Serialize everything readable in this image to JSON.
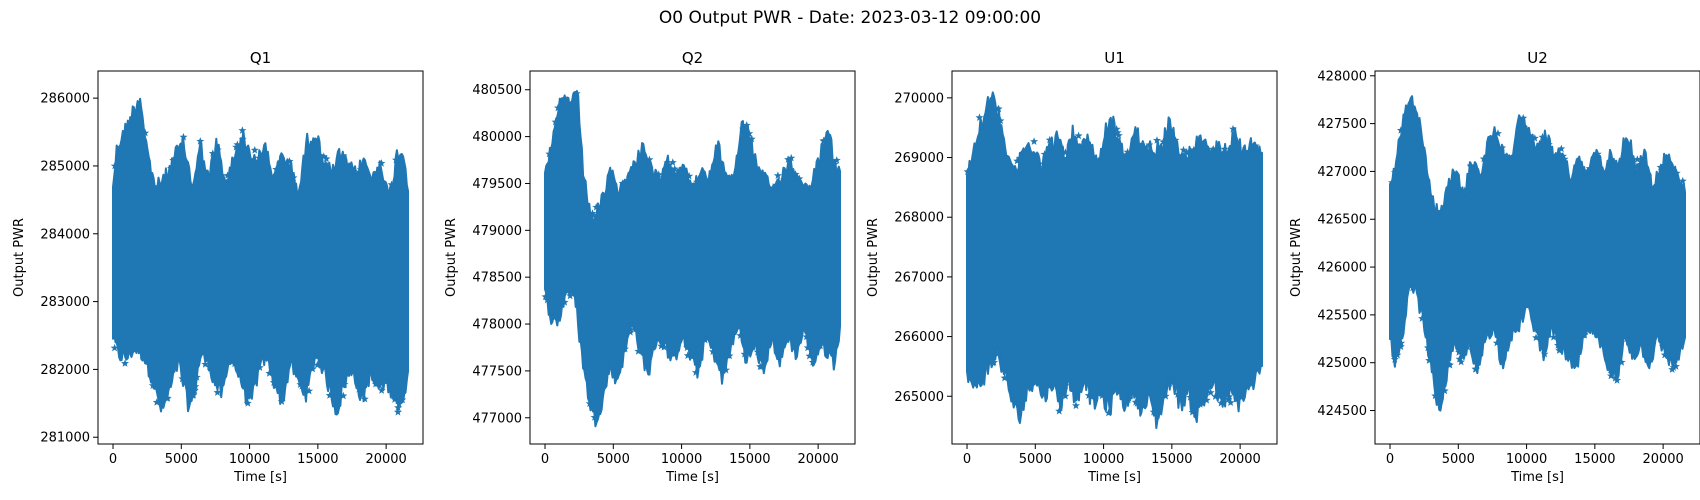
{
  "figure": {
    "title": "O0 Output PWR - Date: 2023-03-12 09:00:00"
  },
  "style": {
    "series_color": "#1f77b4",
    "marker": "star",
    "axis_color": "#000000"
  },
  "chart_data": [
    {
      "type": "scatter",
      "title": "Q1",
      "xlabel": "Time [s]",
      "ylabel": "Output PWR",
      "xlim": [
        -1100,
        22700
      ],
      "ylim": [
        280900,
        286400
      ],
      "xticks": [
        0,
        5000,
        10000,
        15000,
        20000
      ],
      "yticks": [
        281000,
        282000,
        283000,
        284000,
        285000,
        286000
      ],
      "x_range": [
        0,
        21600
      ],
      "band_center": 283400,
      "upper_envelope": [
        [
          0,
          284800
        ],
        [
          300,
          285400
        ],
        [
          800,
          285600
        ],
        [
          1200,
          285800
        ],
        [
          1600,
          286000
        ],
        [
          2000,
          286150
        ],
        [
          2400,
          285500
        ],
        [
          2800,
          285000
        ],
        [
          3200,
          284800
        ],
        [
          3600,
          284900
        ],
        [
          4000,
          285000
        ],
        [
          4600,
          285300
        ],
        [
          5200,
          285450
        ],
        [
          5800,
          284800
        ],
        [
          6400,
          285400
        ],
        [
          7000,
          284900
        ],
        [
          7600,
          285500
        ],
        [
          8200,
          284800
        ],
        [
          8800,
          285200
        ],
        [
          9400,
          285600
        ],
        [
          10000,
          285300
        ],
        [
          10600,
          285200
        ],
        [
          11200,
          285400
        ],
        [
          11800,
          284900
        ],
        [
          12400,
          285300
        ],
        [
          13000,
          285100
        ],
        [
          13600,
          284700
        ],
        [
          14200,
          285500
        ],
        [
          14800,
          285600
        ],
        [
          15400,
          285200
        ],
        [
          16000,
          285000
        ],
        [
          16600,
          285300
        ],
        [
          17200,
          285100
        ],
        [
          17800,
          285000
        ],
        [
          18400,
          285200
        ],
        [
          19000,
          284900
        ],
        [
          19600,
          285200
        ],
        [
          20200,
          284600
        ],
        [
          20800,
          285300
        ],
        [
          21200,
          285400
        ],
        [
          21600,
          284800
        ]
      ],
      "lower_envelope": [
        [
          0,
          282400
        ],
        [
          400,
          282100
        ],
        [
          1000,
          282050
        ],
        [
          1600,
          282200
        ],
        [
          2200,
          282100
        ],
        [
          2800,
          281800
        ],
        [
          3200,
          281500
        ],
        [
          3600,
          281250
        ],
        [
          4200,
          281600
        ],
        [
          4800,
          282000
        ],
        [
          5200,
          281600
        ],
        [
          5600,
          281300
        ],
        [
          6000,
          281600
        ],
        [
          6400,
          282100
        ],
        [
          7000,
          282000
        ],
        [
          7400,
          281700
        ],
        [
          8000,
          281500
        ],
        [
          8600,
          282100
        ],
        [
          9400,
          281700
        ],
        [
          10000,
          281300
        ],
        [
          10600,
          281800
        ],
        [
          11200,
          282100
        ],
        [
          11800,
          281700
        ],
        [
          12400,
          281400
        ],
        [
          13000,
          282000
        ],
        [
          13600,
          281700
        ],
        [
          14200,
          281500
        ],
        [
          14800,
          282100
        ],
        [
          15400,
          281900
        ],
        [
          16000,
          281500
        ],
        [
          16400,
          281250
        ],
        [
          17000,
          281700
        ],
        [
          17600,
          281900
        ],
        [
          18200,
          281400
        ],
        [
          18800,
          281800
        ],
        [
          19400,
          281600
        ],
        [
          20000,
          281700
        ],
        [
          20600,
          281500
        ],
        [
          21000,
          281300
        ],
        [
          21600,
          281800
        ]
      ]
    },
    {
      "type": "scatter",
      "title": "Q2",
      "xlabel": "Time [s]",
      "ylabel": "Output PWR",
      "xlim": [
        -1100,
        22700
      ],
      "ylim": [
        476720,
        480700
      ],
      "xticks": [
        0,
        5000,
        10000,
        15000,
        20000
      ],
      "yticks": [
        477000,
        477500,
        478000,
        478500,
        479000,
        479500,
        480000,
        480500
      ],
      "x_range": [
        0,
        21600
      ],
      "band_center": 478800,
      "upper_envelope": [
        [
          0,
          479700
        ],
        [
          400,
          479900
        ],
        [
          800,
          480200
        ],
        [
          1200,
          480500
        ],
        [
          1800,
          480450
        ],
        [
          2400,
          480500
        ],
        [
          2800,
          479700
        ],
        [
          3200,
          479300
        ],
        [
          3600,
          479200
        ],
        [
          4200,
          479400
        ],
        [
          4800,
          479700
        ],
        [
          5400,
          479500
        ],
        [
          6000,
          479600
        ],
        [
          6600,
          479800
        ],
        [
          7200,
          480000
        ],
        [
          7800,
          479700
        ],
        [
          8400,
          479600
        ],
        [
          9000,
          479800
        ],
        [
          9600,
          479700
        ],
        [
          10200,
          479800
        ],
        [
          10800,
          479500
        ],
        [
          11400,
          479700
        ],
        [
          12000,
          479600
        ],
        [
          12600,
          480000
        ],
        [
          13200,
          479700
        ],
        [
          13800,
          479600
        ],
        [
          14400,
          480200
        ],
        [
          15000,
          480100
        ],
        [
          15600,
          479700
        ],
        [
          16200,
          479600
        ],
        [
          16800,
          479500
        ],
        [
          17400,
          479700
        ],
        [
          18000,
          479800
        ],
        [
          18600,
          479600
        ],
        [
          19200,
          479500
        ],
        [
          19800,
          479700
        ],
        [
          20400,
          480000
        ],
        [
          20800,
          480100
        ],
        [
          21200,
          479800
        ],
        [
          21600,
          479700
        ]
      ],
      "lower_envelope": [
        [
          0,
          478300
        ],
        [
          400,
          478000
        ],
        [
          1000,
          477950
        ],
        [
          1600,
          478300
        ],
        [
          2200,
          478200
        ],
        [
          2600,
          477700
        ],
        [
          3000,
          477300
        ],
        [
          3400,
          477000
        ],
        [
          3700,
          476900
        ],
        [
          4200,
          477100
        ],
        [
          4800,
          477500
        ],
        [
          5200,
          477300
        ],
        [
          5800,
          477600
        ],
        [
          6400,
          478000
        ],
        [
          7000,
          477600
        ],
        [
          7600,
          477400
        ],
        [
          8200,
          477800
        ],
        [
          8800,
          477700
        ],
        [
          9400,
          477500
        ],
        [
          10000,
          477800
        ],
        [
          10600,
          477600
        ],
        [
          11200,
          477400
        ],
        [
          11800,
          477800
        ],
        [
          12400,
          477600
        ],
        [
          13000,
          477300
        ],
        [
          13600,
          477700
        ],
        [
          14200,
          477900
        ],
        [
          14800,
          477500
        ],
        [
          15400,
          477700
        ],
        [
          16000,
          477400
        ],
        [
          16600,
          477800
        ],
        [
          17200,
          477500
        ],
        [
          17800,
          477800
        ],
        [
          18400,
          477600
        ],
        [
          19000,
          477900
        ],
        [
          19600,
          477500
        ],
        [
          20200,
          477700
        ],
        [
          20800,
          477600
        ],
        [
          21200,
          477500
        ],
        [
          21600,
          477900
        ]
      ]
    },
    {
      "type": "scatter",
      "title": "U1",
      "xlabel": "Time [s]",
      "ylabel": "Output PWR",
      "xlim": [
        -1100,
        22700
      ],
      "ylim": [
        264200,
        270450
      ],
      "xticks": [
        0,
        5000,
        10000,
        15000,
        20000
      ],
      "yticks": [
        265000,
        266000,
        267000,
        268000,
        269000,
        270000
      ],
      "x_range": [
        0,
        21600
      ],
      "band_center": 267150,
      "upper_envelope": [
        [
          0,
          268800
        ],
        [
          400,
          269200
        ],
        [
          800,
          269600
        ],
        [
          1200,
          269900
        ],
        [
          1800,
          270150
        ],
        [
          2400,
          269800
        ],
        [
          3000,
          269200
        ],
        [
          3600,
          268900
        ],
        [
          4200,
          269300
        ],
        [
          4800,
          269350
        ],
        [
          5400,
          269000
        ],
        [
          6000,
          269300
        ],
        [
          6600,
          269500
        ],
        [
          7200,
          269100
        ],
        [
          7800,
          269600
        ],
        [
          8400,
          269300
        ],
        [
          9000,
          269500
        ],
        [
          9600,
          269000
        ],
        [
          10200,
          269700
        ],
        [
          10600,
          269800
        ],
        [
          11200,
          269300
        ],
        [
          11800,
          269200
        ],
        [
          12400,
          269600
        ],
        [
          13000,
          269200
        ],
        [
          13600,
          269400
        ],
        [
          14200,
          269300
        ],
        [
          14800,
          269800
        ],
        [
          15400,
          269300
        ],
        [
          16000,
          269100
        ],
        [
          16600,
          269300
        ],
        [
          17200,
          269500
        ],
        [
          17800,
          269100
        ],
        [
          18400,
          269400
        ],
        [
          19000,
          269200
        ],
        [
          19600,
          269600
        ],
        [
          20200,
          269200
        ],
        [
          20800,
          269400
        ],
        [
          21200,
          269300
        ],
        [
          21600,
          269100
        ]
      ],
      "lower_envelope": [
        [
          0,
          265300
        ],
        [
          400,
          265000
        ],
        [
          1000,
          265100
        ],
        [
          1600,
          265300
        ],
        [
          2200,
          265600
        ],
        [
          2800,
          265200
        ],
        [
          3400,
          264700
        ],
        [
          3800,
          264500
        ],
        [
          4400,
          264900
        ],
        [
          5000,
          265200
        ],
        [
          5600,
          264800
        ],
        [
          6200,
          265100
        ],
        [
          6800,
          264700
        ],
        [
          7400,
          265100
        ],
        [
          8000,
          264800
        ],
        [
          8600,
          265200
        ],
        [
          9200,
          264700
        ],
        [
          9800,
          264900
        ],
        [
          10400,
          264600
        ],
        [
          11000,
          265000
        ],
        [
          11600,
          264700
        ],
        [
          12200,
          265000
        ],
        [
          12800,
          264600
        ],
        [
          13400,
          264800
        ],
        [
          13900,
          264400
        ],
        [
          14400,
          264800
        ],
        [
          15000,
          265200
        ],
        [
          15600,
          264700
        ],
        [
          16200,
          264900
        ],
        [
          16800,
          264500
        ],
        [
          17400,
          264800
        ],
        [
          18000,
          265100
        ],
        [
          18600,
          264700
        ],
        [
          19200,
          264900
        ],
        [
          19800,
          264700
        ],
        [
          20400,
          264900
        ],
        [
          21000,
          265100
        ],
        [
          21600,
          265300
        ]
      ]
    },
    {
      "type": "scatter",
      "title": "U2",
      "xlabel": "Time [s]",
      "ylabel": "Output PWR",
      "xlim": [
        -1100,
        22700
      ],
      "ylim": [
        424150,
        428050
      ],
      "xticks": [
        0,
        5000,
        10000,
        15000,
        20000
      ],
      "yticks": [
        424500,
        425000,
        425500,
        426000,
        426500,
        427000,
        427500,
        428000
      ],
      "x_range": [
        0,
        21600
      ],
      "band_center": 426050,
      "upper_envelope": [
        [
          0,
          426900
        ],
        [
          400,
          427100
        ],
        [
          800,
          427500
        ],
        [
          1400,
          427850
        ],
        [
          2000,
          427700
        ],
        [
          2600,
          427200
        ],
        [
          3000,
          426800
        ],
        [
          3600,
          426600
        ],
        [
          4200,
          426900
        ],
        [
          4800,
          427100
        ],
        [
          5400,
          426800
        ],
        [
          6000,
          427200
        ],
        [
          6600,
          427000
        ],
        [
          7200,
          427400
        ],
        [
          7800,
          427500
        ],
        [
          8400,
          427200
        ],
        [
          9000,
          427300
        ],
        [
          9600,
          427700
        ],
        [
          10200,
          427500
        ],
        [
          10800,
          427300
        ],
        [
          11400,
          427500
        ],
        [
          12000,
          427200
        ],
        [
          12600,
          427300
        ],
        [
          13200,
          427000
        ],
        [
          13800,
          427200
        ],
        [
          14400,
          427000
        ],
        [
          15000,
          427300
        ],
        [
          15600,
          427100
        ],
        [
          16200,
          427300
        ],
        [
          16800,
          427200
        ],
        [
          17400,
          427500
        ],
        [
          18000,
          427100
        ],
        [
          18600,
          427300
        ],
        [
          19200,
          426900
        ],
        [
          19800,
          427100
        ],
        [
          20400,
          427300
        ],
        [
          21000,
          427000
        ],
        [
          21600,
          426900
        ]
      ],
      "lower_envelope": [
        [
          0,
          425200
        ],
        [
          400,
          424900
        ],
        [
          1000,
          425200
        ],
        [
          1400,
          425700
        ],
        [
          1800,
          425700
        ],
        [
          2400,
          425400
        ],
        [
          3000,
          424900
        ],
        [
          3600,
          424400
        ],
        [
          4000,
          424700
        ],
        [
          4600,
          425100
        ],
        [
          5200,
          425000
        ],
        [
          5800,
          425100
        ],
        [
          6400,
          424800
        ],
        [
          7000,
          425200
        ],
        [
          7600,
          425300
        ],
        [
          8200,
          424900
        ],
        [
          8800,
          425200
        ],
        [
          9400,
          425300
        ],
        [
          10000,
          425500
        ],
        [
          10600,
          425300
        ],
        [
          11200,
          425000
        ],
        [
          11800,
          425300
        ],
        [
          12400,
          425100
        ],
        [
          13000,
          425000
        ],
        [
          13600,
          424800
        ],
        [
          14200,
          425200
        ],
        [
          14800,
          425300
        ],
        [
          15400,
          425100
        ],
        [
          16000,
          424900
        ],
        [
          16600,
          424700
        ],
        [
          17200,
          425200
        ],
        [
          17800,
          425000
        ],
        [
          18400,
          425100
        ],
        [
          19000,
          424900
        ],
        [
          19600,
          425200
        ],
        [
          20200,
          425000
        ],
        [
          20800,
          424900
        ],
        [
          21400,
          425100
        ],
        [
          21600,
          425200
        ]
      ]
    }
  ]
}
